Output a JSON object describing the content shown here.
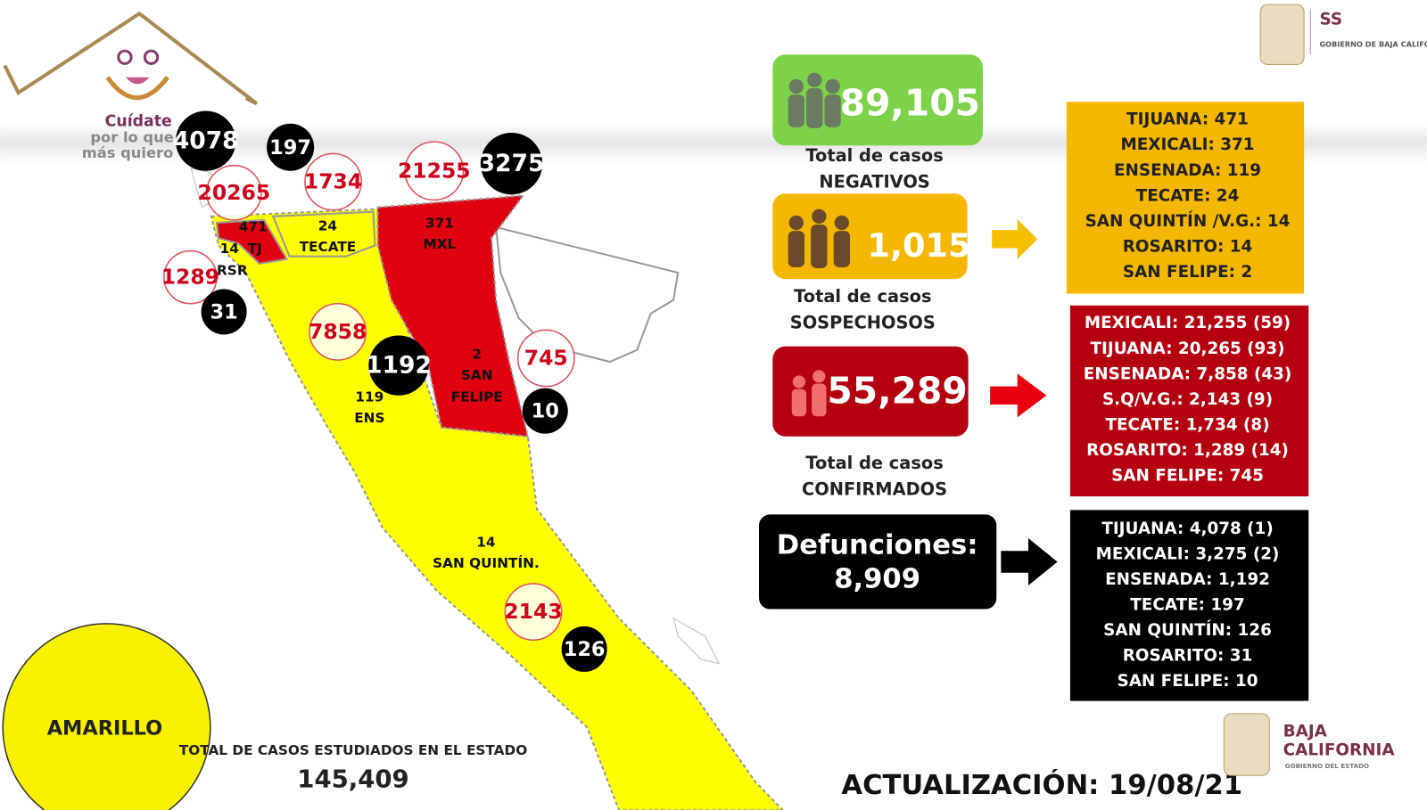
{
  "logo": {
    "line1": "Cuídate",
    "line2": "por lo que",
    "line3": "más quiero"
  },
  "header_logo": {
    "abbr": "SS",
    "text": "GOBIERNO DE BAJA CALIFORNIA"
  },
  "map": {
    "confirmed_circles": [
      20265,
      1734,
      21255,
      1289,
      7858,
      745,
      2143
    ],
    "death_circles": [
      4078,
      197,
      3275,
      31,
      1192,
      10,
      126
    ],
    "region_labels": [
      "471",
      "TJ",
      "14",
      "RSR",
      "24",
      "TECATE",
      "371",
      "MXL",
      "2",
      "SAN",
      "FELIPE",
      "119",
      "ENS",
      "14",
      "SAN QUINTÍN."
    ]
  },
  "status": "AMARILLO",
  "studied": {
    "label": "TOTAL DE CASOS ESTUDIADOS EN EL ESTADO",
    "value": "145,409"
  },
  "negatives": {
    "value": "89,105",
    "label1": "Total de casos",
    "label2": "NEGATIVOS"
  },
  "suspects": {
    "value": "1,015",
    "label1": "Total de casos",
    "label2": "SOSPECHOSOS",
    "by_municipality": [
      "TIJUANA: 471",
      "MEXICALI: 371",
      "ENSENADA: 119",
      "TECATE: 24",
      "SAN QUINTÍN /V.G.: 14",
      "ROSARITO: 14",
      "SAN FELIPE: 2"
    ]
  },
  "confirmed": {
    "value": "55,289",
    "label1": "Total de casos",
    "label2": "CONFIRMADOS",
    "by_municipality": [
      "MEXICALI: 21,255 (59)",
      "TIJUANA: 20,265 (93)",
      "ENSENADA: 7,858  (43)",
      "S.Q/V.G.: 2,143 (9)",
      "TECATE: 1,734  (8)",
      "ROSARITO: 1,289  (14)",
      "SAN FELIPE: 745"
    ]
  },
  "deaths": {
    "label": "Defunciones:",
    "value": "8,909",
    "by_municipality": [
      "TIJUANA: 4,078 (1)",
      "MEXICALI: 3,275 (2)",
      "ENSENADA: 1,192",
      "TECATE: 197",
      "SAN QUINTÍN: 126",
      "ROSARITO: 31",
      "SAN FELIPE: 10"
    ]
  },
  "update": "ACTUALIZACIÓN: 19/08/21",
  "footer_logo": {
    "line1": "BAJA",
    "line2": "CALIFORNIA",
    "line3": "GOBIERNO DEL ESTADO"
  }
}
